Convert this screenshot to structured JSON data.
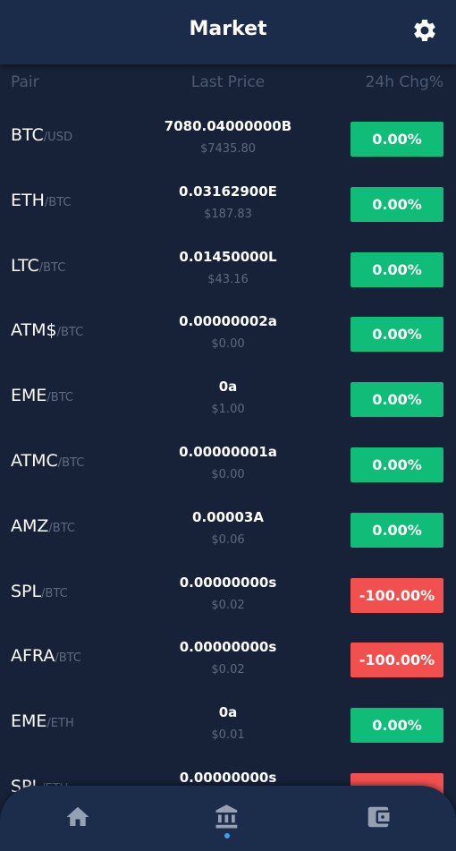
{
  "header": {
    "title": "Market",
    "settings_icon": "gear-icon"
  },
  "columns": {
    "pair": "Pair",
    "last_price": "Last Price",
    "change": "24h Chg%"
  },
  "colors": {
    "up": "#0fbd79",
    "down": "#f24f4f",
    "background": "#172238",
    "header": "#1b2c4a"
  },
  "rows": [
    {
      "base": "BTC",
      "quote": "/USD",
      "price": "7080.04000000B",
      "usd": "$7435.80",
      "change": "0.00%",
      "trend": "up"
    },
    {
      "base": "ETH",
      "quote": "/BTC",
      "price": "0.03162900E",
      "usd": "$187.83",
      "change": "0.00%",
      "trend": "up"
    },
    {
      "base": "LTC",
      "quote": "/BTC",
      "price": "0.01450000L",
      "usd": "$43.16",
      "change": "0.00%",
      "trend": "up"
    },
    {
      "base": "ATM$",
      "quote": "/BTC",
      "price": "0.00000002a",
      "usd": "$0.00",
      "change": "0.00%",
      "trend": "up"
    },
    {
      "base": "EME",
      "quote": "/BTC",
      "price": "0a",
      "usd": "$1.00",
      "change": "0.00%",
      "trend": "up"
    },
    {
      "base": "ATMC",
      "quote": "/BTC",
      "price": "0.00000001a",
      "usd": "$0.00",
      "change": "0.00%",
      "trend": "up"
    },
    {
      "base": "AMZ",
      "quote": "/BTC",
      "price": "0.00003A",
      "usd": "$0.06",
      "change": "0.00%",
      "trend": "up"
    },
    {
      "base": "SPL",
      "quote": "/BTC",
      "price": "0.00000000s",
      "usd": "$0.02",
      "change": "-100.00%",
      "trend": "down"
    },
    {
      "base": "AFRA",
      "quote": "/BTC",
      "price": "0.00000000s",
      "usd": "$0.02",
      "change": "-100.00%",
      "trend": "down"
    },
    {
      "base": "EME",
      "quote": "/ETH",
      "price": "0a",
      "usd": "$0.01",
      "change": "0.00%",
      "trend": "up"
    },
    {
      "base": "SPL",
      "quote": "/ETH",
      "price": "0.00000000s",
      "usd": "",
      "change": "",
      "trend": "down"
    }
  ],
  "bottom_nav": {
    "items": [
      {
        "icon": "home-icon",
        "active": false
      },
      {
        "icon": "bank-icon",
        "active": true
      },
      {
        "icon": "wallet-icon",
        "active": false
      }
    ]
  }
}
